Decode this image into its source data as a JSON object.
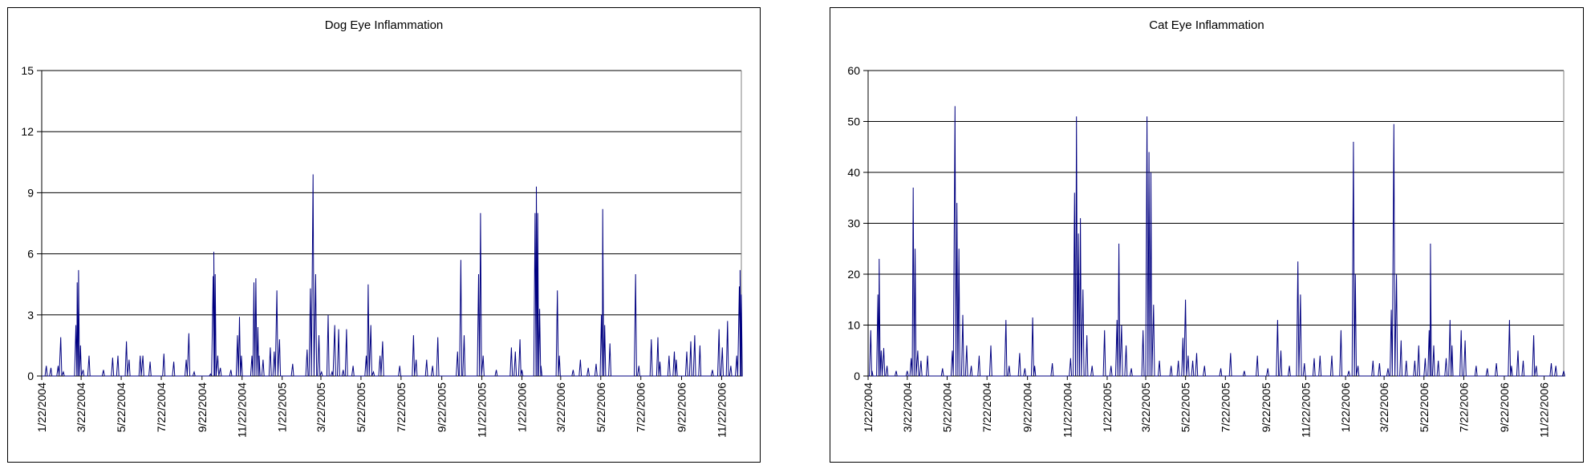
{
  "colors": {
    "line": "#000080",
    "grid": "#000000",
    "background": "#ffffff"
  },
  "chart_data": [
    {
      "type": "line",
      "title": "Dog Eye Inflammation",
      "xlabel": "",
      "ylabel": "",
      "ylim": [
        0,
        15
      ],
      "yticks": [
        0,
        3,
        6,
        9,
        12,
        15
      ],
      "ytick_labels": [
        "0",
        "3",
        "6",
        "9",
        "12",
        "15"
      ],
      "xlim": [
        "2004-01-22",
        "2006-12-22"
      ],
      "xtick_labels": [
        "1/22/2004",
        "3/22/2004",
        "5/22/2004",
        "7/22/2004",
        "9/22/2004",
        "11/22/2004",
        "1/22/2005",
        "3/22/2005",
        "5/22/2005",
        "7/22/2005",
        "9/22/2005",
        "11/22/2005",
        "1/22/2006",
        "3/22/2006",
        "5/22/2006",
        "7/22/2006",
        "9/22/2006",
        "11/22/2006"
      ],
      "grid": true,
      "legend": "none",
      "series": [
        {
          "values": [
            [
              "2004-01-29",
              0.5
            ],
            [
              "2004-02-05",
              0.4
            ],
            [
              "2004-02-16",
              0.5
            ],
            [
              "2004-02-20",
              1.9
            ],
            [
              "2004-02-24",
              0.2
            ],
            [
              "2004-03-14",
              2.5
            ],
            [
              "2004-03-16",
              4.6
            ],
            [
              "2004-03-18",
              5.2
            ],
            [
              "2004-03-21",
              1.5
            ],
            [
              "2004-03-25",
              0.3
            ],
            [
              "2004-04-03",
              1.0
            ],
            [
              "2004-04-25",
              0.3
            ],
            [
              "2004-05-09",
              0.9
            ],
            [
              "2004-05-17",
              1.0
            ],
            [
              "2004-05-30",
              1.7
            ],
            [
              "2004-06-03",
              0.8
            ],
            [
              "2004-06-20",
              1.0
            ],
            [
              "2004-06-24",
              1.0
            ],
            [
              "2004-07-05",
              0.7
            ],
            [
              "2004-07-26",
              1.1
            ],
            [
              "2004-08-10",
              0.7
            ],
            [
              "2004-08-29",
              0.8
            ],
            [
              "2004-09-02",
              2.1
            ],
            [
              "2004-09-10",
              0.2
            ],
            [
              "2004-10-05",
              0.1
            ],
            [
              "2004-10-09",
              4.9
            ],
            [
              "2004-10-10",
              6.1
            ],
            [
              "2004-10-12",
              5.0
            ],
            [
              "2004-10-16",
              1.0
            ],
            [
              "2004-10-20",
              0.4
            ],
            [
              "2004-11-05",
              0.3
            ],
            [
              "2004-11-15",
              2.0
            ],
            [
              "2004-11-18",
              2.9
            ],
            [
              "2004-11-21",
              1.0
            ],
            [
              "2004-12-07",
              1.0
            ],
            [
              "2004-12-10",
              4.6
            ],
            [
              "2004-12-13",
              4.8
            ],
            [
              "2004-12-16",
              2.4
            ],
            [
              "2004-12-18",
              1.0
            ],
            [
              "2004-12-24",
              0.8
            ],
            [
              "2005-01-04",
              1.4
            ],
            [
              "2005-01-10",
              1.2
            ],
            [
              "2005-01-14",
              4.2
            ],
            [
              "2005-01-18",
              1.8
            ],
            [
              "2005-02-07",
              0.6
            ],
            [
              "2005-03-01",
              1.3
            ],
            [
              "2005-03-06",
              4.3
            ],
            [
              "2005-03-10",
              9.9
            ],
            [
              "2005-03-14",
              5.0
            ],
            [
              "2005-03-19",
              2.0
            ],
            [
              "2005-03-23",
              0.2
            ],
            [
              "2005-04-02",
              3.0
            ],
            [
              "2005-04-08",
              0.2
            ],
            [
              "2005-04-12",
              2.5
            ],
            [
              "2005-04-18",
              2.3
            ],
            [
              "2005-04-25",
              0.3
            ],
            [
              "2005-04-30",
              2.3
            ],
            [
              "2005-05-10",
              0.5
            ],
            [
              "2005-05-30",
              1.0
            ],
            [
              "2005-06-02",
              4.5
            ],
            [
              "2005-06-06",
              2.5
            ],
            [
              "2005-06-10",
              0.2
            ],
            [
              "2005-06-20",
              1.0
            ],
            [
              "2005-06-24",
              1.7
            ],
            [
              "2005-07-20",
              0.5
            ],
            [
              "2005-08-10",
              2.0
            ],
            [
              "2005-08-14",
              0.8
            ],
            [
              "2005-08-30",
              0.8
            ],
            [
              "2005-09-08",
              0.5
            ],
            [
              "2005-09-16",
              1.9
            ],
            [
              "2005-10-16",
              1.2
            ],
            [
              "2005-10-21",
              5.7
            ],
            [
              "2005-10-26",
              2.0
            ],
            [
              "2005-11-17",
              5.0
            ],
            [
              "2005-11-20",
              8.0
            ],
            [
              "2005-11-24",
              1.0
            ],
            [
              "2005-12-14",
              0.3
            ],
            [
              "2006-01-06",
              1.4
            ],
            [
              "2006-01-12",
              1.2
            ],
            [
              "2006-01-19",
              1.8
            ],
            [
              "2006-01-22",
              0.3
            ],
            [
              "2006-02-11",
              8.0
            ],
            [
              "2006-02-13",
              9.3
            ],
            [
              "2006-02-15",
              8.0
            ],
            [
              "2006-02-18",
              3.3
            ],
            [
              "2006-02-20",
              0.5
            ],
            [
              "2006-03-17",
              4.2
            ],
            [
              "2006-03-20",
              1.0
            ],
            [
              "2006-04-10",
              0.3
            ],
            [
              "2006-04-21",
              0.8
            ],
            [
              "2006-05-03",
              0.4
            ],
            [
              "2006-05-15",
              0.6
            ],
            [
              "2006-05-23",
              3.0
            ],
            [
              "2006-05-25",
              8.2
            ],
            [
              "2006-05-28",
              2.5
            ],
            [
              "2006-06-05",
              1.6
            ],
            [
              "2006-07-14",
              5.0
            ],
            [
              "2006-07-19",
              0.5
            ],
            [
              "2006-08-07",
              1.8
            ],
            [
              "2006-08-17",
              1.9
            ],
            [
              "2006-08-20",
              0.7
            ],
            [
              "2006-09-03",
              1.0
            ],
            [
              "2006-09-11",
              1.2
            ],
            [
              "2006-09-14",
              0.8
            ],
            [
              "2006-09-30",
              1.2
            ],
            [
              "2006-10-06",
              1.7
            ],
            [
              "2006-10-12",
              2.0
            ],
            [
              "2006-10-20",
              1.5
            ],
            [
              "2006-11-08",
              0.3
            ],
            [
              "2006-11-18",
              2.3
            ],
            [
              "2006-11-23",
              1.4
            ],
            [
              "2006-12-01",
              2.7
            ],
            [
              "2006-12-06",
              0.5
            ],
            [
              "2006-12-15",
              1.0
            ],
            [
              "2006-12-19",
              4.4
            ],
            [
              "2006-12-20",
              5.2
            ],
            [
              "2006-12-22",
              4.0
            ]
          ]
        }
      ]
    },
    {
      "type": "line",
      "title": "Cat Eye Inflammation",
      "xlabel": "",
      "ylabel": "",
      "ylim": [
        0,
        60
      ],
      "yticks": [
        0,
        10,
        20,
        30,
        40,
        50,
        60
      ],
      "ytick_labels": [
        "0",
        "10",
        "20",
        "30",
        "40",
        "50",
        "60"
      ],
      "xlim": [
        "2004-01-22",
        "2006-12-22"
      ],
      "xtick_labels": [
        "1/22/2004",
        "3/22/2004",
        "5/22/2004",
        "7/22/2004",
        "9/22/2004",
        "11/22/2004",
        "1/22/2005",
        "3/22/2005",
        "5/22/2005",
        "7/22/2005",
        "9/22/2005",
        "11/22/2005",
        "1/22/2006",
        "3/22/2006",
        "5/22/2006",
        "7/22/2006",
        "9/22/2006",
        "11/22/2006"
      ],
      "grid": true,
      "legend": "none",
      "series": [
        {
          "values": [
            [
              "2004-01-26",
              9.0
            ],
            [
              "2004-01-28",
              1.0
            ],
            [
              "2004-02-06",
              16.0
            ],
            [
              "2004-02-08",
              23.0
            ],
            [
              "2004-02-11",
              5.0
            ],
            [
              "2004-02-15",
              5.5
            ],
            [
              "2004-02-20",
              2.0
            ],
            [
              "2004-03-05",
              1.0
            ],
            [
              "2004-03-22",
              1.0
            ],
            [
              "2004-03-28",
              3.5
            ],
            [
              "2004-03-31",
              37.0
            ],
            [
              "2004-04-03",
              25.0
            ],
            [
              "2004-04-07",
              5.0
            ],
            [
              "2004-04-12",
              3.0
            ],
            [
              "2004-04-22",
              4.0
            ],
            [
              "2004-05-15",
              1.5
            ],
            [
              "2004-05-30",
              5.0
            ],
            [
              "2004-06-03",
              53.0
            ],
            [
              "2004-06-06",
              34.0
            ],
            [
              "2004-06-09",
              25.0
            ],
            [
              "2004-06-15",
              12.0
            ],
            [
              "2004-06-21",
              6.0
            ],
            [
              "2004-06-28",
              2.0
            ],
            [
              "2004-07-10",
              4.0
            ],
            [
              "2004-07-28",
              6.0
            ],
            [
              "2004-08-20",
              11.0
            ],
            [
              "2004-08-25",
              2.0
            ],
            [
              "2004-09-10",
              4.5
            ],
            [
              "2004-09-18",
              1.5
            ],
            [
              "2004-09-30",
              11.5
            ],
            [
              "2004-10-03",
              2.0
            ],
            [
              "2004-10-30",
              2.5
            ],
            [
              "2004-11-27",
              3.5
            ],
            [
              "2004-12-03",
              36.0
            ],
            [
              "2004-12-06",
              51.0
            ],
            [
              "2004-12-09",
              28.0
            ],
            [
              "2004-12-12",
              31.0
            ],
            [
              "2004-12-16",
              17.0
            ],
            [
              "2004-12-22",
              8.0
            ],
            [
              "2004-12-30",
              2.0
            ],
            [
              "2005-01-18",
              9.0
            ],
            [
              "2005-01-28",
              2.0
            ],
            [
              "2005-02-06",
              11.0
            ],
            [
              "2005-02-09",
              26.0
            ],
            [
              "2005-02-13",
              10.0
            ],
            [
              "2005-02-20",
              6.0
            ],
            [
              "2005-02-28",
              1.5
            ],
            [
              "2005-03-18",
              9.0
            ],
            [
              "2005-03-24",
              51.0
            ],
            [
              "2005-03-27",
              44.0
            ],
            [
              "2005-03-30",
              40.0
            ],
            [
              "2005-04-03",
              14.0
            ],
            [
              "2005-04-12",
              3.0
            ],
            [
              "2005-04-30",
              2.0
            ],
            [
              "2005-05-11",
              3.0
            ],
            [
              "2005-05-18",
              7.5
            ],
            [
              "2005-05-22",
              15.0
            ],
            [
              "2005-05-26",
              4.0
            ],
            [
              "2005-06-02",
              3.0
            ],
            [
              "2005-06-08",
              4.5
            ],
            [
              "2005-06-20",
              2.0
            ],
            [
              "2005-07-15",
              1.5
            ],
            [
              "2005-07-30",
              4.5
            ],
            [
              "2005-08-20",
              1.0
            ],
            [
              "2005-09-09",
              4.0
            ],
            [
              "2005-09-25",
              1.5
            ],
            [
              "2005-10-10",
              11.0
            ],
            [
              "2005-10-15",
              5.0
            ],
            [
              "2005-10-28",
              2.0
            ],
            [
              "2005-11-10",
              22.5
            ],
            [
              "2005-11-14",
              16.0
            ],
            [
              "2005-11-20",
              2.5
            ],
            [
              "2005-12-05",
              3.5
            ],
            [
              "2005-12-14",
              4.0
            ],
            [
              "2006-01-01",
              4.0
            ],
            [
              "2006-01-15",
              9.0
            ],
            [
              "2006-01-27",
              1.0
            ],
            [
              "2006-02-03",
              46.0
            ],
            [
              "2006-02-06",
              20.0
            ],
            [
              "2006-02-10",
              2.0
            ],
            [
              "2006-03-05",
              3.0
            ],
            [
              "2006-03-15",
              2.5
            ],
            [
              "2006-03-28",
              1.5
            ],
            [
              "2006-04-02",
              13.0
            ],
            [
              "2006-04-06",
              49.5
            ],
            [
              "2006-04-10",
              20.0
            ],
            [
              "2006-04-17",
              7.0
            ],
            [
              "2006-04-25",
              3.0
            ],
            [
              "2006-05-08",
              3.0
            ],
            [
              "2006-05-14",
              6.0
            ],
            [
              "2006-05-24",
              3.5
            ],
            [
              "2006-05-30",
              9.0
            ],
            [
              "2006-06-01",
              26.0
            ],
            [
              "2006-06-06",
              6.0
            ],
            [
              "2006-06-13",
              3.0
            ],
            [
              "2006-06-25",
              3.5
            ],
            [
              "2006-07-01",
              11.0
            ],
            [
              "2006-07-04",
              6.0
            ],
            [
              "2006-07-18",
              9.0
            ],
            [
              "2006-07-24",
              7.0
            ],
            [
              "2006-08-10",
              2.0
            ],
            [
              "2006-08-27",
              1.5
            ],
            [
              "2006-09-10",
              2.5
            ],
            [
              "2006-09-30",
              11.0
            ],
            [
              "2006-10-03",
              2.0
            ],
            [
              "2006-10-13",
              5.0
            ],
            [
              "2006-10-21",
              3.0
            ],
            [
              "2006-11-06",
              8.0
            ],
            [
              "2006-11-10",
              2.0
            ],
            [
              "2006-12-03",
              2.5
            ],
            [
              "2006-12-10",
              2.0
            ],
            [
              "2006-12-22",
              1.0
            ]
          ]
        }
      ]
    }
  ]
}
